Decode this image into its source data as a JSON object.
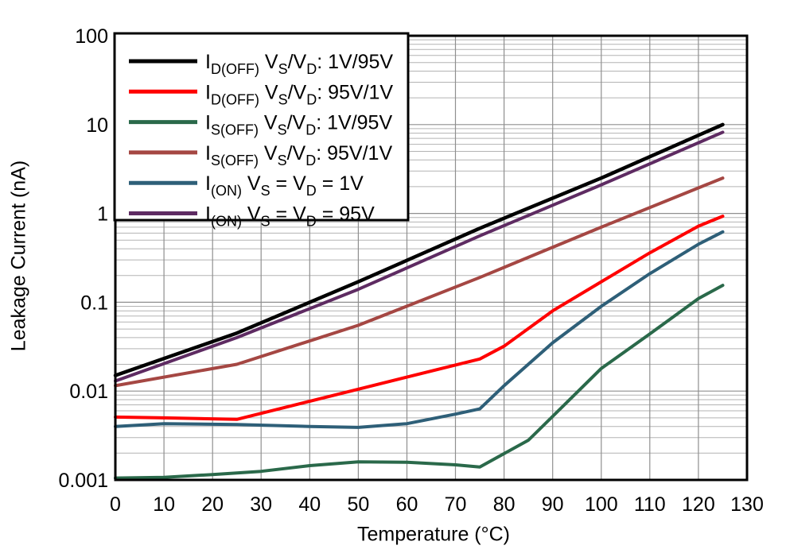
{
  "chart_data": {
    "type": "line",
    "title": "",
    "xlabel": "Temperature (°C)",
    "ylabel": "Leakage Current (nA)",
    "xlim": [
      0,
      130
    ],
    "ylim": [
      0.001,
      100
    ],
    "y_scale": "log",
    "grid": {
      "vertical_major": true,
      "horizontal_major": true,
      "horizontal_minor": true
    },
    "legend_position": "top-left-inside",
    "x_ticks": [
      0,
      10,
      20,
      30,
      40,
      50,
      60,
      70,
      80,
      90,
      100,
      110,
      120,
      130
    ],
    "y_ticks": [
      {
        "value": 100,
        "label": "100"
      },
      {
        "value": 10,
        "label": "10"
      },
      {
        "value": 1,
        "label": "1"
      },
      {
        "value": 0.1,
        "label": "0.1"
      },
      {
        "value": 0.01,
        "label": "0.01"
      },
      {
        "value": 0.001,
        "label": "0.001"
      }
    ],
    "series": [
      {
        "id": "id-off-1v-95v",
        "name": "ID(OFF) VS/VD: 1V/95V",
        "color": "#000000",
        "width": 4.5,
        "points": [
          [
            0,
            0.015
          ],
          [
            25,
            0.045
          ],
          [
            50,
            0.17
          ],
          [
            75,
            0.68
          ],
          [
            100,
            2.5
          ],
          [
            125,
            10
          ]
        ]
      },
      {
        "id": "id-off-95v-1v",
        "name": "ID(OFF) VS/VD: 95V/1V",
        "color": "#FF0000",
        "width": 4,
        "points": [
          [
            0,
            0.0051
          ],
          [
            10,
            0.005
          ],
          [
            25,
            0.0048
          ],
          [
            50,
            0.0105
          ],
          [
            75,
            0.023
          ],
          [
            80,
            0.032
          ],
          [
            90,
            0.08
          ],
          [
            100,
            0.17
          ],
          [
            110,
            0.36
          ],
          [
            120,
            0.72
          ],
          [
            125,
            0.93
          ]
        ]
      },
      {
        "id": "is-off-1v-95v",
        "name": "IS(OFF) VS/VD: 1V/95V",
        "color": "#2A694A",
        "width": 4,
        "points": [
          [
            0,
            0.00105
          ],
          [
            10,
            0.00107
          ],
          [
            20,
            0.00115
          ],
          [
            30,
            0.00125
          ],
          [
            40,
            0.00145
          ],
          [
            50,
            0.0016
          ],
          [
            60,
            0.00158
          ],
          [
            70,
            0.00148
          ],
          [
            75,
            0.0014
          ],
          [
            85,
            0.0028
          ],
          [
            90,
            0.0052
          ],
          [
            100,
            0.018
          ],
          [
            110,
            0.044
          ],
          [
            120,
            0.11
          ],
          [
            125,
            0.155
          ]
        ]
      },
      {
        "id": "is-off-95v-1v",
        "name": "IS(OFF) VS/VD: 95V/1V",
        "color": "#A54743",
        "width": 4,
        "points": [
          [
            0,
            0.0115
          ],
          [
            25,
            0.02
          ],
          [
            50,
            0.055
          ],
          [
            75,
            0.19
          ],
          [
            100,
            0.7
          ],
          [
            125,
            2.5
          ]
        ]
      },
      {
        "id": "i-on-1v",
        "name": "I(ON) VS = VD = 1V",
        "color": "#2E5F78",
        "width": 4,
        "points": [
          [
            0,
            0.004
          ],
          [
            10,
            0.0043
          ],
          [
            25,
            0.0042
          ],
          [
            40,
            0.004
          ],
          [
            50,
            0.0039
          ],
          [
            60,
            0.0043
          ],
          [
            70,
            0.0055
          ],
          [
            75,
            0.0063
          ],
          [
            80,
            0.0115
          ],
          [
            90,
            0.035
          ],
          [
            100,
            0.09
          ],
          [
            110,
            0.21
          ],
          [
            120,
            0.45
          ],
          [
            125,
            0.62
          ]
        ]
      },
      {
        "id": "i-on-95v",
        "name": "I(ON) VS = VD = 95V",
        "color": "#5E2B62",
        "width": 4,
        "points": [
          [
            0,
            0.013
          ],
          [
            25,
            0.04
          ],
          [
            50,
            0.14
          ],
          [
            75,
            0.56
          ],
          [
            100,
            2.1
          ],
          [
            125,
            8.2
          ]
        ]
      }
    ],
    "legend_entries": [
      {
        "series": "id-off-1v-95v",
        "color": "#000000",
        "parts": [
          {
            "t": "I"
          },
          {
            "t": "D(OFF)",
            "sub": true
          },
          {
            "t": " V"
          },
          {
            "t": "S",
            "sub": true
          },
          {
            "t": "/V"
          },
          {
            "t": "D",
            "sub": true
          },
          {
            "t": ": 1V/95V"
          }
        ]
      },
      {
        "series": "id-off-95v-1v",
        "color": "#FF0000",
        "parts": [
          {
            "t": "I"
          },
          {
            "t": "D(OFF)",
            "sub": true
          },
          {
            "t": " V"
          },
          {
            "t": "S",
            "sub": true
          },
          {
            "t": "/V"
          },
          {
            "t": "D",
            "sub": true
          },
          {
            "t": ": 95V/1V"
          }
        ]
      },
      {
        "series": "is-off-1v-95v",
        "color": "#2A694A",
        "parts": [
          {
            "t": "I"
          },
          {
            "t": "S(OFF)",
            "sub": true
          },
          {
            "t": " V"
          },
          {
            "t": "S",
            "sub": true
          },
          {
            "t": "/V"
          },
          {
            "t": "D",
            "sub": true
          },
          {
            "t": ": 1V/95V"
          }
        ]
      },
      {
        "series": "is-off-95v-1v",
        "color": "#A54743",
        "parts": [
          {
            "t": "I"
          },
          {
            "t": "S(OFF)",
            "sub": true
          },
          {
            "t": " V"
          },
          {
            "t": "S",
            "sub": true
          },
          {
            "t": "/V"
          },
          {
            "t": "D",
            "sub": true
          },
          {
            "t": ": 95V/1V"
          }
        ]
      },
      {
        "series": "i-on-1v",
        "color": "#2E5F78",
        "parts": [
          {
            "t": "I"
          },
          {
            "t": "(ON)",
            "sub": true
          },
          {
            "t": " V"
          },
          {
            "t": "S",
            "sub": true
          },
          {
            "t": " = V"
          },
          {
            "t": "D",
            "sub": true
          },
          {
            "t": " = 1V"
          }
        ]
      },
      {
        "series": "i-on-95v",
        "color": "#5E2B62",
        "parts": [
          {
            "t": "I"
          },
          {
            "t": "(ON)",
            "sub": true
          },
          {
            "t": " V"
          },
          {
            "t": "S",
            "sub": true
          },
          {
            "t": " = V"
          },
          {
            "t": "D",
            "sub": true
          },
          {
            "t": " = 95V"
          }
        ]
      }
    ],
    "colors": {
      "grid_major": "#8F8F8F",
      "grid_minor": "#B3B3B3",
      "axis_border": "#000000",
      "background": "#FFFFFF",
      "text": "#000000"
    }
  }
}
